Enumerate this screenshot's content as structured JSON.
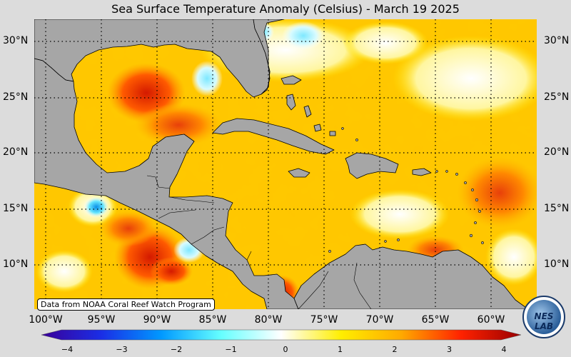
{
  "title": "Sea Surface Temperature Anomaly (Celsius) - March 19 2025",
  "credit": "Data from NOAA Coral Reef Watch Program",
  "logo": {
    "text": "NESLAB"
  },
  "map": {
    "type": "sea-surface-temperature-anomaly-map",
    "lat_labels": [
      "30°N",
      "25°N",
      "20°N",
      "15°N",
      "10°N"
    ],
    "lon_labels": [
      "100°W",
      "95°W",
      "90°W",
      "85°W",
      "80°W",
      "75°W",
      "70°W",
      "65°W",
      "60°W"
    ],
    "grid": "dotted",
    "land_color": "#a6a6a6",
    "coast_color": "#000000"
  },
  "colorbar": {
    "tick_labels": [
      "−4",
      "−3",
      "−2",
      "−1",
      "0",
      "1",
      "2",
      "3",
      "4"
    ],
    "range": [
      -4,
      4
    ],
    "colors": [
      "#3a0099",
      "#1a2ee6",
      "#0099ff",
      "#66ffff",
      "#ffffff",
      "#ffee00",
      "#ffaa00",
      "#ff2200",
      "#990000"
    ]
  }
}
